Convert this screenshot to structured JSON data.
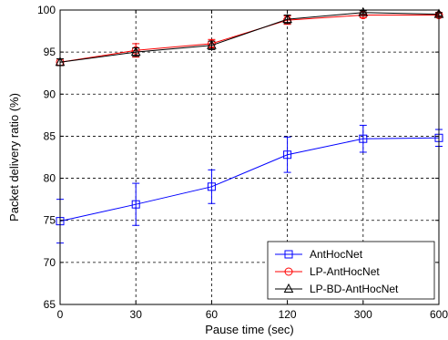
{
  "chart_data": {
    "type": "line",
    "categories": [
      "0",
      "30",
      "60",
      "120",
      "300",
      "600"
    ],
    "xlabel": "Pause time (sec)",
    "ylabel": "Packet delivery ratio (%)",
    "ylim": [
      65,
      100
    ],
    "yticks": [
      65,
      70,
      75,
      80,
      85,
      90,
      95,
      100
    ],
    "grid": true,
    "legend_position": "bottom-right",
    "series": [
      {
        "name": "AntHocNet",
        "color": "#0000ff",
        "marker": "square",
        "values": [
          74.9,
          76.9,
          79.0,
          82.8,
          84.7,
          84.8
        ],
        "error": [
          2.6,
          2.5,
          2.0,
          2.1,
          1.6,
          1.0
        ]
      },
      {
        "name": "LP-AntHocNet",
        "color": "#ff0000",
        "marker": "circle",
        "values": [
          93.8,
          95.2,
          96.0,
          98.8,
          99.4,
          99.4
        ],
        "error": [
          0.4,
          0.8,
          0.5,
          0.5,
          0.3,
          0.2
        ]
      },
      {
        "name": "LP-BD-AntHocNet",
        "color": "#000000",
        "marker": "triangle",
        "values": [
          93.8,
          95.0,
          95.8,
          98.9,
          99.7,
          99.5
        ],
        "error": [
          0.4,
          0.5,
          0.5,
          0.5,
          0.2,
          0.2
        ]
      }
    ]
  }
}
